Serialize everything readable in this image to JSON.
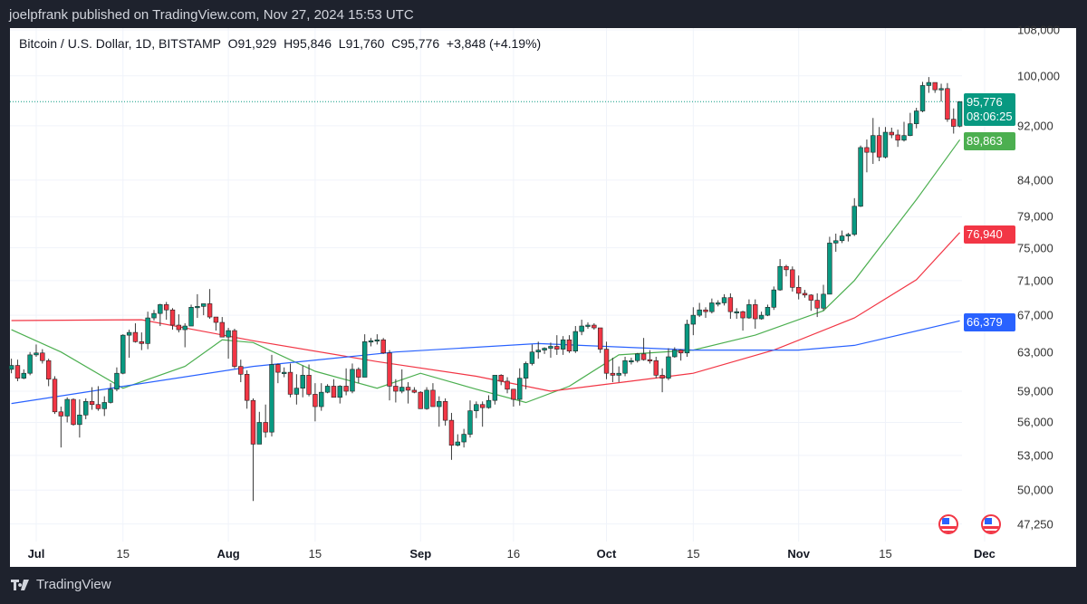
{
  "header": {
    "published": "joelpfrank published on TradingView.com, Nov 27, 2024 15:53 UTC"
  },
  "legend": {
    "symbol": "Bitcoin / U.S. Dollar, 1D, BITSTAMP",
    "open": "O91,929",
    "high": "H95,846",
    "low": "L91,760",
    "close": "C95,776",
    "change": "+3,848 (+4.19%)"
  },
  "footer": {
    "brand": "TradingView"
  },
  "colors": {
    "up": "#089981",
    "down": "#f23645",
    "ma20": "#4caf50",
    "ma50": "#f23645",
    "ma200": "#2962ff",
    "last": "#089981"
  },
  "price_labels": {
    "last": "95,776",
    "countdown": "08:06:25",
    "ma20": "89,863",
    "ma50": "76,940",
    "ma200": "66,379"
  },
  "chart_data": {
    "type": "candlestick",
    "title": "Bitcoin / U.S. Dollar, 1D, BITSTAMP",
    "yscale": "log",
    "ylim": [
      47250,
      108000
    ],
    "start_date": "2024-06-27",
    "y_ticks": [
      "108,000",
      "100,000",
      "92,000",
      "84,000",
      "79,000",
      "75,000",
      "71,000",
      "67,000",
      "63,000",
      "59,000",
      "56,000",
      "53,000",
      "50,000",
      "47,250"
    ],
    "x_ticks": [
      {
        "date": "2024-07-01",
        "label": "Jul",
        "bold": true
      },
      {
        "date": "2024-07-15",
        "label": "15",
        "bold": false
      },
      {
        "date": "2024-08-01",
        "label": "Aug",
        "bold": true
      },
      {
        "date": "2024-08-15",
        "label": "15",
        "bold": false
      },
      {
        "date": "2024-09-01",
        "label": "Sep",
        "bold": true
      },
      {
        "date": "2024-09-16",
        "label": "16",
        "bold": false
      },
      {
        "date": "2024-10-01",
        "label": "Oct",
        "bold": true
      },
      {
        "date": "2024-10-15",
        "label": "15",
        "bold": false
      },
      {
        "date": "2024-11-01",
        "label": "Nov",
        "bold": true
      },
      {
        "date": "2024-11-15",
        "label": "15",
        "bold": false
      },
      {
        "date": "2024-12-01",
        "label": "Dec",
        "bold": true
      }
    ],
    "ohlc": [
      [
        61200,
        62300,
        60800,
        61600
      ],
      [
        61600,
        62200,
        60000,
        60300
      ],
      [
        60300,
        61200,
        60200,
        60800
      ],
      [
        60800,
        63000,
        60600,
        62700
      ],
      [
        62700,
        63800,
        62500,
        62900
      ],
      [
        62900,
        63300,
        61800,
        62100
      ],
      [
        62100,
        62300,
        59500,
        60200
      ],
      [
        60200,
        60500,
        56800,
        57000
      ],
      [
        57000,
        57500,
        53700,
        56600
      ],
      [
        56600,
        58400,
        56000,
        58200
      ],
      [
        58200,
        58300,
        55700,
        55800
      ],
      [
        55800,
        58200,
        54600,
        56700
      ],
      [
        56700,
        58300,
        56300,
        58000
      ],
      [
        58000,
        59400,
        57200,
        57700
      ],
      [
        57700,
        59500,
        57100,
        57300
      ],
      [
        57300,
        58500,
        56600,
        57900
      ],
      [
        57900,
        59800,
        57800,
        59200
      ],
      [
        59200,
        61400,
        59000,
        60800
      ],
      [
        60800,
        64900,
        60700,
        64800
      ],
      [
        64800,
        65400,
        62400,
        65100
      ],
      [
        65100,
        66100,
        64000,
        64100
      ],
      [
        64100,
        65100,
        63200,
        63900
      ],
      [
        63900,
        67400,
        63300,
        66700
      ],
      [
        66700,
        67600,
        66400,
        67200
      ],
      [
        67200,
        68300,
        65800,
        68200
      ],
      [
        68200,
        68500,
        66500,
        67600
      ],
      [
        67600,
        67800,
        65400,
        65900
      ],
      [
        65900,
        67100,
        65100,
        65400
      ],
      [
        65400,
        66100,
        63500,
        65800
      ],
      [
        65800,
        68200,
        65800,
        67900
      ],
      [
        67900,
        69400,
        66700,
        68000
      ],
      [
        68000,
        68300,
        67000,
        68300
      ],
      [
        68300,
        70000,
        66600,
        66800
      ],
      [
        66800,
        66800,
        65300,
        66200
      ],
      [
        66200,
        66800,
        64600,
        64600
      ],
      [
        64600,
        65600,
        62300,
        65300
      ],
      [
        65300,
        65500,
        61300,
        61500
      ],
      [
        61500,
        62200,
        59900,
        60700
      ],
      [
        60700,
        61100,
        57300,
        58100
      ],
      [
        58100,
        58300,
        49100,
        54000
      ],
      [
        54000,
        57000,
        54000,
        56000
      ],
      [
        56000,
        57700,
        54600,
        55100
      ],
      [
        55100,
        62700,
        54700,
        61700
      ],
      [
        61700,
        61800,
        59800,
        60900
      ],
      [
        60900,
        61400,
        60400,
        60900
      ],
      [
        60900,
        61800,
        58400,
        58700
      ],
      [
        58700,
        60700,
        57700,
        59300
      ],
      [
        59300,
        61600,
        58400,
        60600
      ],
      [
        60600,
        61700,
        58500,
        58700
      ],
      [
        58700,
        59800,
        56100,
        57500
      ],
      [
        57500,
        59800,
        57100,
        58900
      ],
      [
        58900,
        59700,
        58800,
        59500
      ],
      [
        59500,
        60200,
        58400,
        58400
      ],
      [
        58400,
        59600,
        57800,
        59500
      ],
      [
        59500,
        61300,
        58600,
        59000
      ],
      [
        59000,
        61800,
        58800,
        61200
      ],
      [
        61200,
        61400,
        59800,
        60400
      ],
      [
        60400,
        64900,
        60400,
        64100
      ],
      [
        64100,
        64500,
        63600,
        64200
      ],
      [
        64200,
        64900,
        63800,
        64300
      ],
      [
        64300,
        64500,
        62800,
        62900
      ],
      [
        62900,
        63200,
        58100,
        59500
      ],
      [
        59500,
        60200,
        57900,
        59000
      ],
      [
        59000,
        61200,
        58800,
        59400
      ],
      [
        59400,
        59900,
        57800,
        59100
      ],
      [
        59100,
        59400,
        58800,
        58900
      ],
      [
        58900,
        59000,
        57300,
        57300
      ],
      [
        57300,
        59400,
        57200,
        59100
      ],
      [
        59100,
        59800,
        57500,
        57500
      ],
      [
        57500,
        58500,
        55600,
        58000
      ],
      [
        58000,
        58300,
        55700,
        56200
      ],
      [
        56200,
        56900,
        52600,
        53900
      ],
      [
        53900,
        54900,
        53800,
        54200
      ],
      [
        54200,
        55400,
        53700,
        54900
      ],
      [
        54900,
        58100,
        54600,
        57100
      ],
      [
        57100,
        58000,
        56400,
        57700
      ],
      [
        57700,
        58000,
        55600,
        57400
      ],
      [
        57400,
        58600,
        57300,
        58100
      ],
      [
        58100,
        60600,
        57700,
        60600
      ],
      [
        60600,
        60700,
        59600,
        60000
      ],
      [
        60000,
        60400,
        58800,
        59200
      ],
      [
        59200,
        59200,
        57500,
        58200
      ],
      [
        58200,
        61300,
        57600,
        60300
      ],
      [
        60300,
        62000,
        59200,
        61800
      ],
      [
        61800,
        63800,
        61600,
        63000
      ],
      [
        63000,
        64100,
        62300,
        63200
      ],
      [
        63200,
        63500,
        62800,
        63400
      ],
      [
        63400,
        64000,
        62400,
        63600
      ],
      [
        63600,
        64800,
        62700,
        63300
      ],
      [
        63300,
        64700,
        62700,
        64300
      ],
      [
        64300,
        64800,
        62900,
        63100
      ],
      [
        63100,
        65800,
        62900,
        65200
      ],
      [
        65200,
        66500,
        64800,
        65800
      ],
      [
        65800,
        66200,
        65500,
        65900
      ],
      [
        65900,
        66100,
        65400,
        65600
      ],
      [
        65600,
        65600,
        62900,
        63300
      ],
      [
        63300,
        64100,
        60200,
        60800
      ],
      [
        60800,
        62400,
        59900,
        60600
      ],
      [
        60600,
        61500,
        59900,
        60800
      ],
      [
        60800,
        62500,
        60500,
        62100
      ],
      [
        62100,
        62400,
        61700,
        62100
      ],
      [
        62100,
        62900,
        61900,
        62800
      ],
      [
        62800,
        64500,
        62100,
        62200
      ],
      [
        62200,
        63200,
        61800,
        62100
      ],
      [
        62100,
        62500,
        60300,
        60600
      ],
      [
        60600,
        61300,
        58900,
        60300
      ],
      [
        60300,
        63400,
        60100,
        62500
      ],
      [
        62500,
        63500,
        62400,
        63200
      ],
      [
        63200,
        63300,
        62100,
        62900
      ],
      [
        62900,
        66500,
        62500,
        66000
      ],
      [
        66000,
        67900,
        64800,
        67000
      ],
      [
        67000,
        68400,
        66800,
        67600
      ],
      [
        67600,
        67900,
        66700,
        67400
      ],
      [
        67400,
        68900,
        67200,
        68400
      ],
      [
        68400,
        68700,
        68000,
        68400
      ],
      [
        68400,
        69400,
        68100,
        69000
      ],
      [
        69000,
        69500,
        66600,
        67400
      ],
      [
        67400,
        67800,
        66600,
        67400
      ],
      [
        67400,
        67500,
        65300,
        66700
      ],
      [
        66700,
        68800,
        66600,
        68200
      ],
      [
        68200,
        68800,
        65500,
        66600
      ],
      [
        66600,
        67400,
        66500,
        67000
      ],
      [
        67000,
        68200,
        66900,
        67900
      ],
      [
        67900,
        70300,
        67600,
        69900
      ],
      [
        69900,
        73600,
        69800,
        72700
      ],
      [
        72700,
        72900,
        71500,
        72300
      ],
      [
        72300,
        72700,
        69700,
        70200
      ],
      [
        70200,
        71600,
        68800,
        69500
      ],
      [
        69500,
        69900,
        69000,
        69300
      ],
      [
        69300,
        69400,
        67500,
        68700
      ],
      [
        68700,
        69500,
        66800,
        67800
      ],
      [
        67800,
        70500,
        67500,
        69400
      ],
      [
        69400,
        76400,
        69400,
        75600
      ],
      [
        75600,
        76800,
        74500,
        75900
      ],
      [
        75900,
        77200,
        75600,
        76500
      ],
      [
        76500,
        76900,
        75800,
        76700
      ],
      [
        76700,
        81500,
        76500,
        80400
      ],
      [
        80400,
        89000,
        80300,
        88700
      ],
      [
        88700,
        89900,
        85100,
        88000
      ],
      [
        88000,
        93200,
        86300,
        90500
      ],
      [
        90500,
        91800,
        86700,
        87300
      ],
      [
        87300,
        91800,
        87100,
        91000
      ],
      [
        91000,
        91700,
        90100,
        90600
      ],
      [
        90600,
        91400,
        88800,
        89800
      ],
      [
        89800,
        92600,
        89600,
        90500
      ],
      [
        90500,
        94000,
        90400,
        92300
      ],
      [
        92300,
        94800,
        91600,
        94300
      ],
      [
        94300,
        99000,
        94100,
        98400
      ],
      [
        98400,
        99800,
        97200,
        98900
      ],
      [
        98900,
        98900,
        97200,
        97700
      ],
      [
        97700,
        98700,
        95800,
        97900
      ],
      [
        97900,
        98800,
        92600,
        93000
      ],
      [
        93000,
        94700,
        90800,
        91900
      ],
      [
        91929,
        95846,
        91760,
        95776
      ]
    ],
    "series": [
      {
        "name": "MA 20",
        "color": "#4caf50",
        "points": [
          [
            "2024-06-27",
            65400
          ],
          [
            "2024-07-05",
            63000
          ],
          [
            "2024-07-15",
            59300
          ],
          [
            "2024-07-25",
            61500
          ],
          [
            "2024-07-31",
            64300
          ],
          [
            "2024-08-05",
            64000
          ],
          [
            "2024-08-15",
            61000
          ],
          [
            "2024-08-25",
            59300
          ],
          [
            "2024-09-01",
            60800
          ],
          [
            "2024-09-10",
            59200
          ],
          [
            "2024-09-18",
            57900
          ],
          [
            "2024-09-25",
            59500
          ],
          [
            "2024-10-03",
            62700
          ],
          [
            "2024-10-15",
            63200
          ],
          [
            "2024-10-25",
            64800
          ],
          [
            "2024-11-05",
            67500
          ],
          [
            "2024-11-10",
            71000
          ],
          [
            "2024-11-20",
            81300
          ],
          [
            "2024-11-27",
            89863
          ]
        ]
      },
      {
        "name": "MA 50",
        "color": "#f23645",
        "points": [
          [
            "2024-06-27",
            66400
          ],
          [
            "2024-07-18",
            66500
          ],
          [
            "2024-08-05",
            64200
          ],
          [
            "2024-08-25",
            62000
          ],
          [
            "2024-09-10",
            60500
          ],
          [
            "2024-09-22",
            59000
          ],
          [
            "2024-10-05",
            60000
          ],
          [
            "2024-10-15",
            60800
          ],
          [
            "2024-10-28",
            63200
          ],
          [
            "2024-11-10",
            66700
          ],
          [
            "2024-11-20",
            71100
          ],
          [
            "2024-11-27",
            76940
          ]
        ]
      },
      {
        "name": "MA 200",
        "color": "#2962ff",
        "points": [
          [
            "2024-06-27",
            57800
          ],
          [
            "2024-08-05",
            61500
          ],
          [
            "2024-08-28",
            63000
          ],
          [
            "2024-09-20",
            63900
          ],
          [
            "2024-10-15",
            63200
          ],
          [
            "2024-11-01",
            63200
          ],
          [
            "2024-11-10",
            63700
          ],
          [
            "2024-11-27",
            66379
          ]
        ]
      }
    ]
  }
}
